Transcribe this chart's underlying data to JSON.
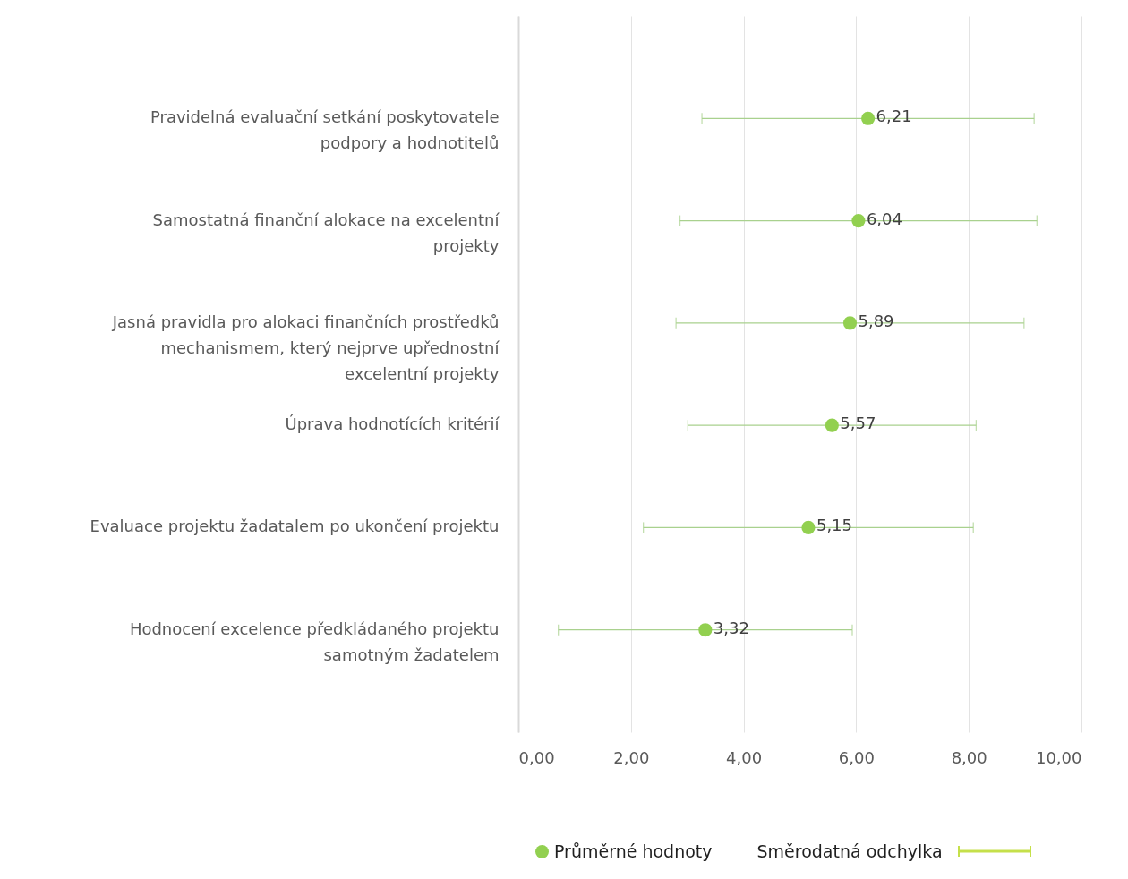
{
  "chart_data": {
    "type": "scatter",
    "orientation": "horizontal",
    "categories": [
      "Pravidelná evaluační setkání poskytovatele podpory a hodnotitelů",
      "Samostatná finanční alokace na excelentní projekty",
      "Jasná pravidla pro alokaci finančních prostředků mechanismem, který nejprve upřednostní excelentní projekty",
      "Úprava hodnotících kritérií",
      "Evaluace projektu žadatalem po ukončení projektu",
      "Hodnocení excelence předkládaného projektu samotným žadatelem"
    ],
    "series": [
      {
        "name": "Průměrné hodnoty",
        "color": "#92d050",
        "values": [
          6.21,
          6.04,
          5.89,
          5.57,
          5.15,
          3.32
        ],
        "errors": [
          2.95,
          3.17,
          3.09,
          2.56,
          2.93,
          2.61
        ],
        "value_labels": [
          "6,21",
          "6,04",
          "5,89",
          "5,57",
          "5,15",
          "3,32"
        ]
      }
    ],
    "xlim": [
      0,
      10
    ],
    "xticks": [
      {
        "value": 0,
        "label": "0,00"
      },
      {
        "value": 2,
        "label": "2,00"
      },
      {
        "value": 4,
        "label": "4,00"
      },
      {
        "value": 6,
        "label": "6,00"
      },
      {
        "value": 8,
        "label": "8,00"
      },
      {
        "value": 10,
        "label": "10,00"
      }
    ],
    "grid": "x",
    "legend": "bottom",
    "marker": "circle",
    "annotations": [
      "Směrodatná odchylka"
    ]
  }
}
